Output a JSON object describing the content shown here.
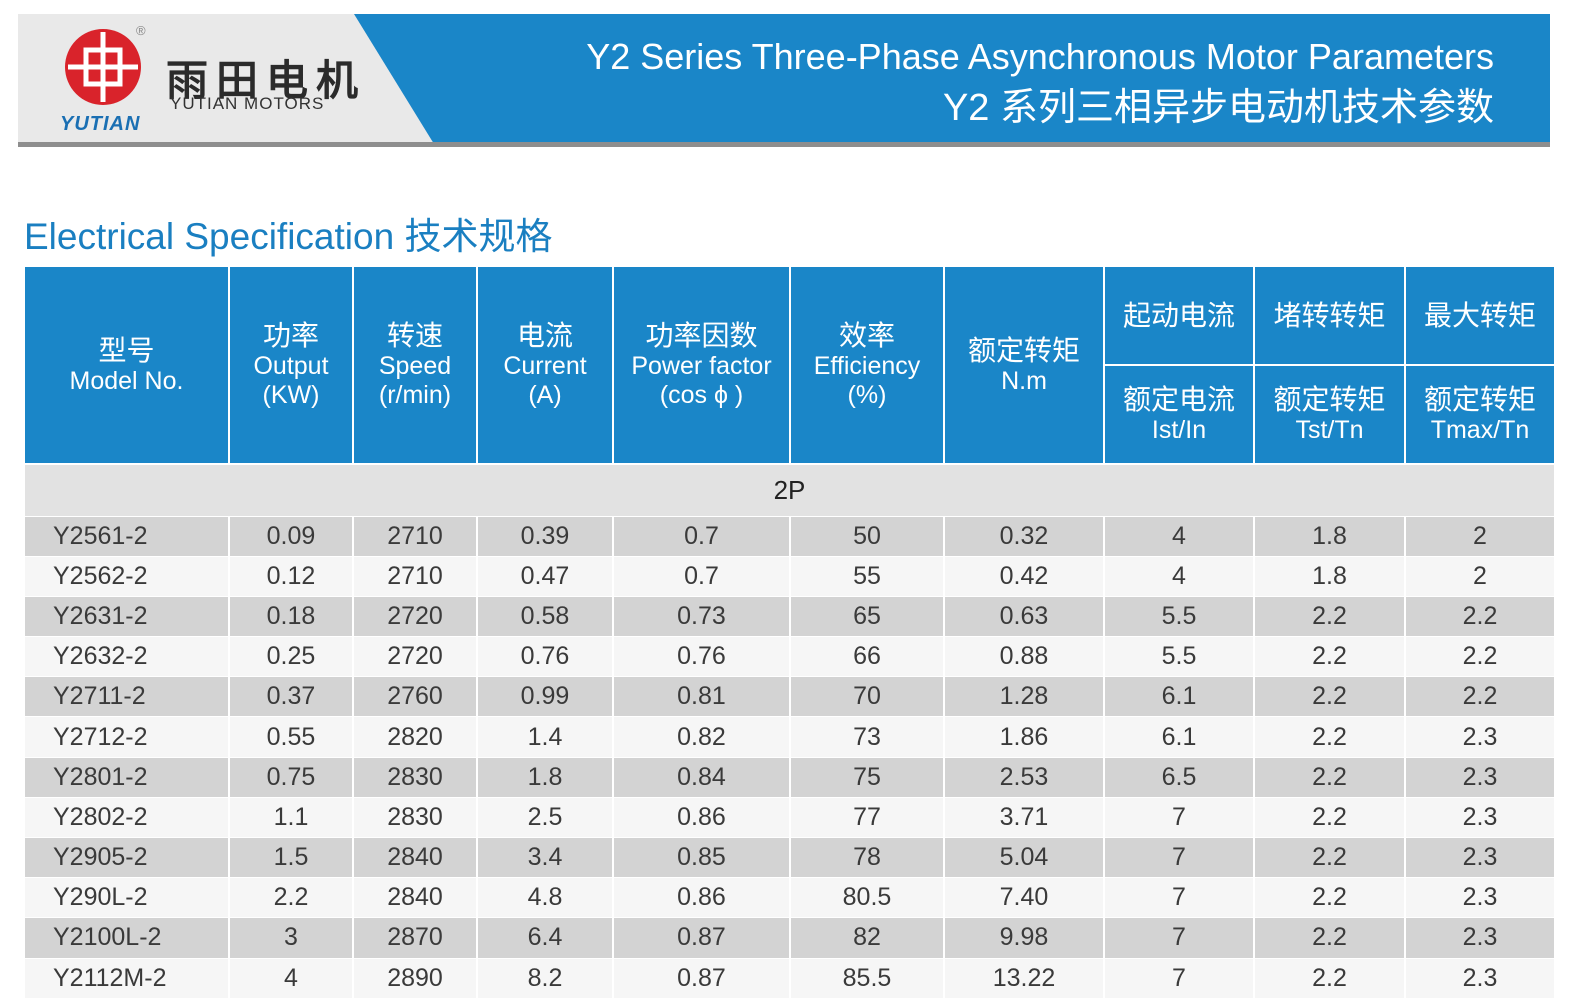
{
  "header": {
    "brand_cn": "雨田电机",
    "brand_en": "YUTIAN MOTORS",
    "logo_text": "YUTIAN",
    "registered_mark": "®",
    "title_en": "Y2 Series Three-Phase Asynchronous Motor Parameters",
    "title_cn": "Y2 系列三相异步电动机技术参数"
  },
  "section": {
    "title": "Electrical Specification 技术规格"
  },
  "colors": {
    "header_blue": "#1a86c8",
    "title_blue": "#1a7fc1",
    "logo_red": "#d9232b",
    "row_dark": "#d3d3d3",
    "row_light": "#f6f6f6"
  },
  "table": {
    "headers": {
      "model_cn": "型号",
      "model_en": "Model No.",
      "output_cn": "功率",
      "output_en": "Output",
      "output_unit": "(KW)",
      "speed_cn": "转速",
      "speed_en": "Speed",
      "speed_unit": "(r/min)",
      "current_cn": "电流",
      "current_en": "Current",
      "current_unit": "(A)",
      "pf_cn": "功率因数",
      "pf_en": "Power factor",
      "pf_unit": "(cos ϕ )",
      "eff_cn": "效率",
      "eff_en": "Efficiency",
      "eff_unit": "(%)",
      "torque_cn": "额定转矩",
      "torque_en": "N.m",
      "start_current_cn": "起动电流",
      "locked_torque_cn": "堵转转矩",
      "max_torque_cn": "最大转矩",
      "rated_current_cn": "额定电流",
      "ist_in": "Ist/In",
      "rated_torque_cn_1": "额定转矩",
      "tst_tn": "Tst/Tn",
      "rated_torque_cn_2": "额定转矩",
      "tmax_tn": "Tmax/Tn"
    },
    "group_label": "2P",
    "rows": [
      {
        "model": "Y2561-2",
        "output": "0.09",
        "speed": "2710",
        "current": "0.39",
        "pf": "0.7",
        "eff": "50",
        "torque": "0.32",
        "ist": "4",
        "tst": "1.8",
        "tmax": "2"
      },
      {
        "model": "Y2562-2",
        "output": "0.12",
        "speed": "2710",
        "current": "0.47",
        "pf": "0.7",
        "eff": "55",
        "torque": "0.42",
        "ist": "4",
        "tst": "1.8",
        "tmax": "2"
      },
      {
        "model": "Y2631-2",
        "output": "0.18",
        "speed": "2720",
        "current": "0.58",
        "pf": "0.73",
        "eff": "65",
        "torque": "0.63",
        "ist": "5.5",
        "tst": "2.2",
        "tmax": "2.2"
      },
      {
        "model": "Y2632-2",
        "output": "0.25",
        "speed": "2720",
        "current": "0.76",
        "pf": "0.76",
        "eff": "66",
        "torque": "0.88",
        "ist": "5.5",
        "tst": "2.2",
        "tmax": "2.2"
      },
      {
        "model": "Y2711-2",
        "output": "0.37",
        "speed": "2760",
        "current": "0.99",
        "pf": "0.81",
        "eff": "70",
        "torque": "1.28",
        "ist": "6.1",
        "tst": "2.2",
        "tmax": "2.2"
      },
      {
        "model": "Y2712-2",
        "output": "0.55",
        "speed": "2820",
        "current": "1.4",
        "pf": "0.82",
        "eff": "73",
        "torque": "1.86",
        "ist": "6.1",
        "tst": "2.2",
        "tmax": "2.3"
      },
      {
        "model": "Y2801-2",
        "output": "0.75",
        "speed": "2830",
        "current": "1.8",
        "pf": "0.84",
        "eff": "75",
        "torque": "2.53",
        "ist": "6.5",
        "tst": "2.2",
        "tmax": "2.3"
      },
      {
        "model": "Y2802-2",
        "output": "1.1",
        "speed": "2830",
        "current": "2.5",
        "pf": "0.86",
        "eff": "77",
        "torque": "3.71",
        "ist": "7",
        "tst": "2.2",
        "tmax": "2.3"
      },
      {
        "model": "Y2905-2",
        "output": "1.5",
        "speed": "2840",
        "current": "3.4",
        "pf": "0.85",
        "eff": "78",
        "torque": "5.04",
        "ist": "7",
        "tst": "2.2",
        "tmax": "2.3"
      },
      {
        "model": "Y290L-2",
        "output": "2.2",
        "speed": "2840",
        "current": "4.8",
        "pf": "0.86",
        "eff": "80.5",
        "torque": "7.40",
        "ist": "7",
        "tst": "2.2",
        "tmax": "2.3"
      },
      {
        "model": "Y2100L-2",
        "output": "3",
        "speed": "2870",
        "current": "6.4",
        "pf": "0.87",
        "eff": "82",
        "torque": "9.98",
        "ist": "7",
        "tst": "2.2",
        "tmax": "2.3"
      },
      {
        "model": "Y2112M-2",
        "output": "4",
        "speed": "2890",
        "current": "8.2",
        "pf": "0.87",
        "eff": "85.5",
        "torque": "13.22",
        "ist": "7",
        "tst": "2.2",
        "tmax": "2.3"
      }
    ]
  }
}
